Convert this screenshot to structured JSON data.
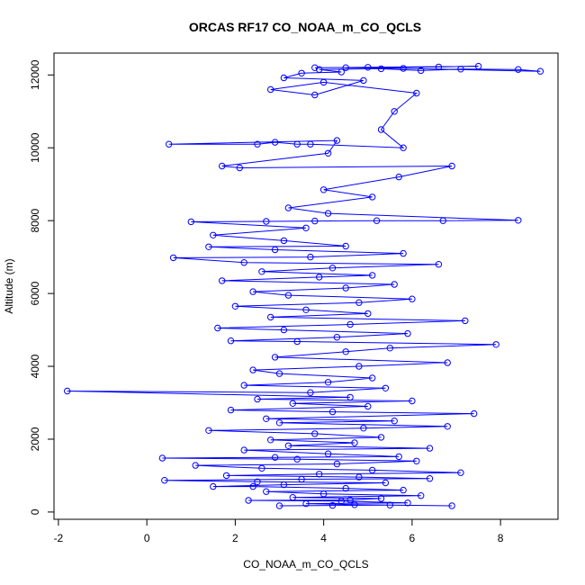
{
  "chart_data": {
    "type": "line",
    "title": "ORCAS RF17 CO_NOAA_m_CO_QCLS",
    "xlabel": "CO_NOAA_m_CO_QCLS",
    "ylabel": "Altitude (m)",
    "xlim": [
      -2.1,
      9.3
    ],
    "ylim": [
      -200,
      12600
    ],
    "xticks": [
      -2,
      0,
      2,
      4,
      6,
      8
    ],
    "yticks": [
      0,
      2000,
      4000,
      6000,
      8000,
      10000,
      12000
    ],
    "grid": false,
    "line_color": "#0000ff",
    "marker": "open-circle",
    "series": [
      {
        "points": [
          [
            3.0,
            170
          ],
          [
            4.2,
            180
          ],
          [
            5.5,
            190
          ],
          [
            6.9,
            170
          ],
          [
            4.7,
            200
          ],
          [
            3.6,
            230
          ],
          [
            5.9,
            250
          ],
          [
            4.4,
            300
          ],
          [
            2.3,
            320
          ],
          [
            4.6,
            330
          ],
          [
            5.3,
            370
          ],
          [
            3.3,
            400
          ],
          [
            6.2,
            450
          ],
          [
            4.0,
            500
          ],
          [
            2.7,
            560
          ],
          [
            5.8,
            600
          ],
          [
            4.5,
            650
          ],
          [
            2.4,
            700
          ],
          [
            1.5,
            700
          ],
          [
            3.1,
            750
          ],
          [
            5.4,
            800
          ],
          [
            2.5,
            830
          ],
          [
            0.4,
            870
          ],
          [
            3.5,
            900
          ],
          [
            6.4,
            920
          ],
          [
            4.8,
            960
          ],
          [
            1.8,
            1000
          ],
          [
            3.9,
            1040
          ],
          [
            7.1,
            1080
          ],
          [
            5.1,
            1150
          ],
          [
            2.6,
            1200
          ],
          [
            1.1,
            1280
          ],
          [
            4.3,
            1320
          ],
          [
            6.1,
            1400
          ],
          [
            3.4,
            1450
          ],
          [
            0.35,
            1480
          ],
          [
            2.9,
            1500
          ],
          [
            5.7,
            1520
          ],
          [
            4.1,
            1600
          ],
          [
            2.2,
            1700
          ],
          [
            6.4,
            1750
          ],
          [
            3.2,
            1820
          ],
          [
            4.7,
            1900
          ],
          [
            2.8,
            1980
          ],
          [
            5.3,
            2050
          ],
          [
            3.8,
            2150
          ],
          [
            1.4,
            2240
          ],
          [
            4.9,
            2300
          ],
          [
            6.8,
            2350
          ],
          [
            3.0,
            2450
          ],
          [
            5.6,
            2500
          ],
          [
            2.7,
            2560
          ],
          [
            7.4,
            2700
          ],
          [
            4.2,
            2750
          ],
          [
            1.9,
            2800
          ],
          [
            5.0,
            2900
          ],
          [
            3.3,
            2980
          ],
          [
            6.0,
            3050
          ],
          [
            2.5,
            3100
          ],
          [
            4.6,
            3150
          ],
          [
            -1.8,
            3320
          ],
          [
            3.7,
            3280
          ],
          [
            5.4,
            3400
          ],
          [
            2.2,
            3480
          ],
          [
            4.1,
            3560
          ],
          [
            5.1,
            3680
          ],
          [
            3.0,
            3800
          ],
          [
            2.4,
            3900
          ],
          [
            4.8,
            4000
          ],
          [
            6.8,
            4100
          ],
          [
            2.9,
            4250
          ],
          [
            4.5,
            4400
          ],
          [
            5.5,
            4500
          ],
          [
            7.9,
            4600
          ],
          [
            3.4,
            4680
          ],
          [
            1.9,
            4700
          ],
          [
            4.3,
            4800
          ],
          [
            5.9,
            4900
          ],
          [
            3.1,
            5000
          ],
          [
            1.6,
            5050
          ],
          [
            4.6,
            5150
          ],
          [
            7.2,
            5250
          ],
          [
            2.8,
            5350
          ],
          [
            5.0,
            5450
          ],
          [
            3.6,
            5550
          ],
          [
            2.0,
            5650
          ],
          [
            4.8,
            5750
          ],
          [
            6.0,
            5850
          ],
          [
            3.2,
            5950
          ],
          [
            2.4,
            6050
          ],
          [
            4.5,
            6150
          ],
          [
            5.6,
            6250
          ],
          [
            1.7,
            6350
          ],
          [
            3.9,
            6450
          ],
          [
            5.1,
            6500
          ],
          [
            2.6,
            6600
          ],
          [
            4.2,
            6700
          ],
          [
            6.6,
            6800
          ],
          [
            2.2,
            6850
          ],
          [
            0.6,
            6980
          ],
          [
            3.7,
            7000
          ],
          [
            5.8,
            7100
          ],
          [
            2.9,
            7200
          ],
          [
            1.4,
            7280
          ],
          [
            4.5,
            7300
          ],
          [
            3.1,
            7450
          ],
          [
            1.5,
            7600
          ],
          [
            3.6,
            7800
          ],
          [
            1.0,
            7970
          ],
          [
            2.7,
            7980
          ],
          [
            3.8,
            7990
          ],
          [
            5.2,
            8000
          ],
          [
            6.7,
            8000
          ],
          [
            8.4,
            8010
          ],
          [
            4.1,
            8200
          ],
          [
            3.2,
            8350
          ],
          [
            5.1,
            8650
          ],
          [
            4.0,
            8850
          ],
          [
            5.7,
            9200
          ],
          [
            6.9,
            9500
          ],
          [
            2.1,
            9450
          ],
          [
            1.7,
            9500
          ],
          [
            4.1,
            9850
          ],
          [
            4.3,
            10200
          ],
          [
            0.5,
            10100
          ],
          [
            2.5,
            10100
          ],
          [
            2.9,
            10150
          ],
          [
            3.4,
            10100
          ],
          [
            3.7,
            10100
          ],
          [
            5.8,
            10000
          ],
          [
            5.3,
            10500
          ],
          [
            5.6,
            11000
          ],
          [
            6.1,
            11500
          ],
          [
            4.0,
            11800
          ],
          [
            2.8,
            11600
          ],
          [
            3.8,
            11450
          ],
          [
            4.9,
            11850
          ],
          [
            3.1,
            11920
          ],
          [
            3.5,
            12050
          ],
          [
            4.4,
            12080
          ],
          [
            3.9,
            12150
          ],
          [
            5.3,
            12170
          ],
          [
            6.2,
            12120
          ],
          [
            7.1,
            12160
          ],
          [
            8.4,
            12150
          ],
          [
            8.9,
            12100
          ],
          [
            5.8,
            12180
          ],
          [
            4.5,
            12200
          ],
          [
            6.6,
            12220
          ],
          [
            7.5,
            12240
          ],
          [
            5.0,
            12210
          ],
          [
            3.8,
            12200
          ]
        ]
      }
    ]
  }
}
